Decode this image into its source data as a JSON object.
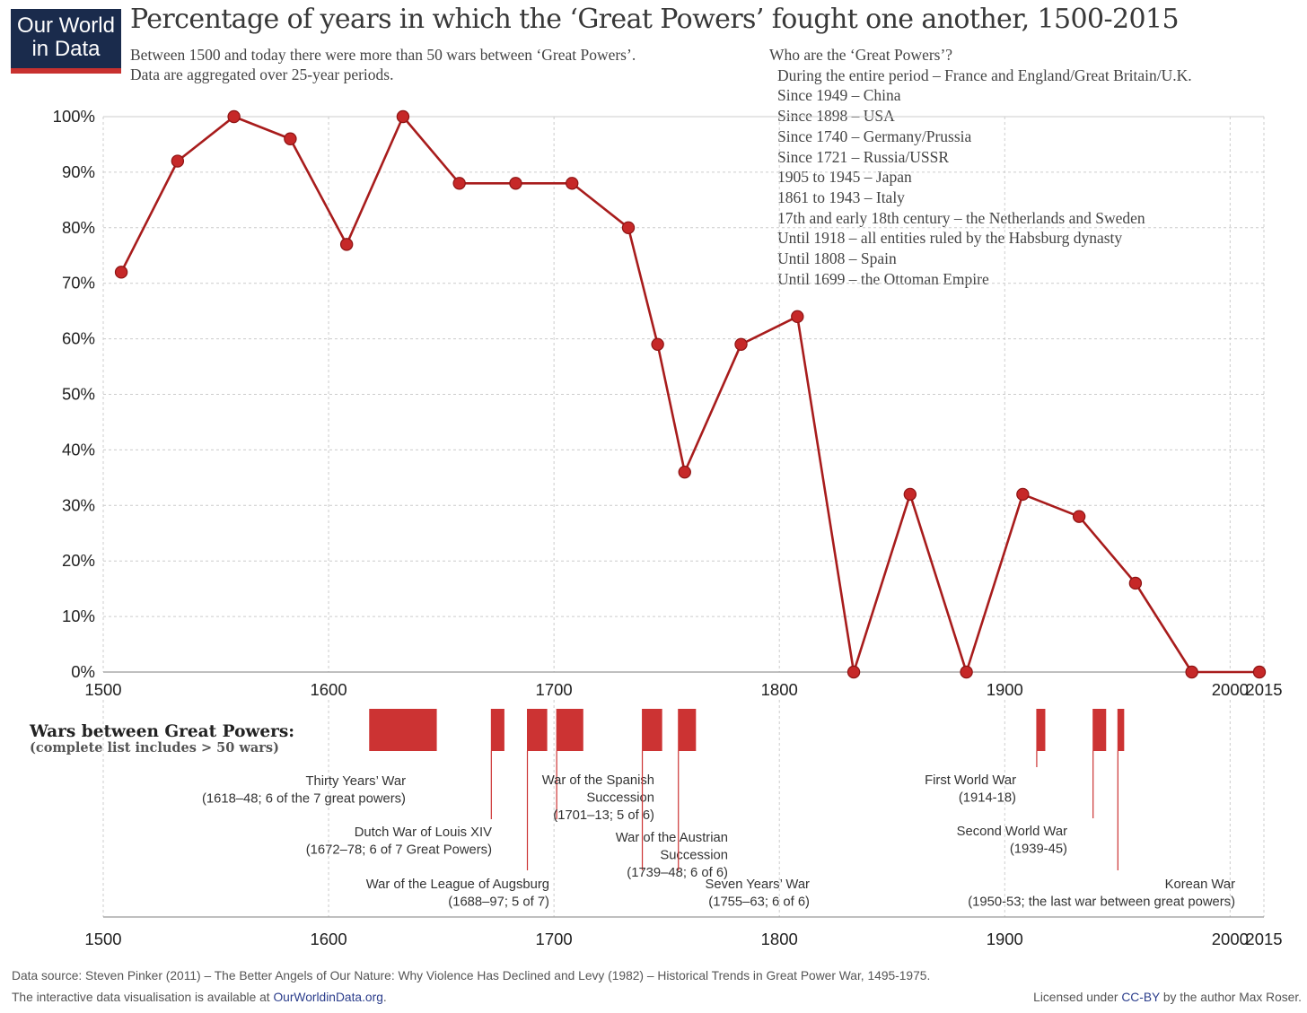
{
  "logo": {
    "line1": "Our World",
    "line2": "in Data"
  },
  "title": "Percentage of years in which the ‘Great Powers’ fought one another, 1500-2015",
  "subtitle": {
    "line1": "Between 1500 and today there were more than 50 wars between ‘Great Powers’.",
    "line2": "Data are aggregated over 25-year periods."
  },
  "powers": {
    "heading": "Who are the ‘Great Powers’?",
    "items": [
      "During the entire period – France and England/Great Britain/U.K.",
      "Since 1949 – China",
      "Since 1898 – USA",
      "Since 1740 – Germany/Prussia",
      "Since 1721 – Russia/USSR",
      "1905 to 1945 – Japan",
      "1861 to 1943 – Italy",
      "17th and early 18th century – the Netherlands and Sweden",
      "Until 1918 – all entities ruled by the Habsburg dynasty",
      "Until 1808 – Spain",
      "Until 1699 – the Ottoman Empire"
    ]
  },
  "colors": {
    "series": "#a81c1c",
    "marker": "#c62828",
    "war_bar": "#cc3333",
    "grid": "#cccccc"
  },
  "chart_data": {
    "type": "line",
    "xlim": [
      1500,
      2015
    ],
    "ylim": [
      0,
      100
    ],
    "y_ticks": [
      0,
      10,
      20,
      30,
      40,
      50,
      60,
      70,
      80,
      90,
      100
    ],
    "y_tick_labels": [
      "0%",
      "10%",
      "20%",
      "30%",
      "40%",
      "50%",
      "60%",
      "70%",
      "80%",
      "90%",
      "100%"
    ],
    "x_ticks": [
      1500,
      1600,
      1700,
      1800,
      1900,
      2000,
      2015
    ],
    "x_tick_labels": [
      "1500",
      "1600",
      "1700",
      "1800",
      "1900",
      "2000",
      "2015"
    ],
    "grid": true,
    "series": [
      {
        "x": [
          1508,
          1533,
          1558,
          1583,
          1608,
          1633,
          1658,
          1683,
          1708,
          1733,
          1746,
          1758,
          1783,
          1808,
          1833,
          1858,
          1883,
          1908,
          1933,
          1958,
          1983,
          2013
        ],
        "values": [
          72,
          92,
          100,
          96,
          77,
          100,
          88,
          88,
          88,
          80,
          59,
          36,
          59,
          64,
          0,
          32,
          0,
          32,
          28,
          16,
          0,
          0
        ]
      }
    ]
  },
  "wars": {
    "heading": "Wars between Great Powers:",
    "subheading": "(complete list includes > 50 wars)",
    "items": [
      {
        "line1": "Thirty Years’ War",
        "line2": "(1618–48; 6 of the 7 great powers)",
        "start": 1618,
        "end": 1648
      },
      {
        "line1": "Dutch War of Louis XIV",
        "line2": "(1672–78; 6 of 7 Great Powers)",
        "start": 1672,
        "end": 1678
      },
      {
        "line1": "War of the League of Augsburg",
        "line2": "(1688–97; 5 of 7)",
        "start": 1688,
        "end": 1697
      },
      {
        "line1": "War of the Spanish",
        "line2": "Succession",
        "line3": "(1701–13; 5 of 6)",
        "start": 1701,
        "end": 1713
      },
      {
        "line1": "War of the Austrian",
        "line2": "Succession",
        "line3": "(1739–48; 6 of 6)",
        "start": 1739,
        "end": 1748
      },
      {
        "line1": "Seven Years’ War",
        "line2": "(1755–63; 6 of 6)",
        "start": 1755,
        "end": 1763
      },
      {
        "line1": "First World War",
        "line2": "(1914-18)",
        "start": 1914,
        "end": 1918
      },
      {
        "line1": "Second World War",
        "line2": "(1939-45)",
        "start": 1939,
        "end": 1945
      },
      {
        "line1": "Korean War",
        "line2": "(1950-53; the last war between great powers)",
        "start": 1950,
        "end": 1953
      }
    ]
  },
  "footer": {
    "source": "Data source: Steven Pinker (2011) – The Better Angels of Our Nature: Why Violence Has Declined and Levy (1982) – Historical Trends in Great Power War, 1495-1975.",
    "interactive_prefix": "The interactive data visualisation is available at ",
    "interactive_link": "OurWorldinData.org",
    "interactive_suffix": ".",
    "license_prefix": "Licensed under ",
    "license_link": "CC-BY",
    "license_suffix": " by the author Max Roser."
  }
}
